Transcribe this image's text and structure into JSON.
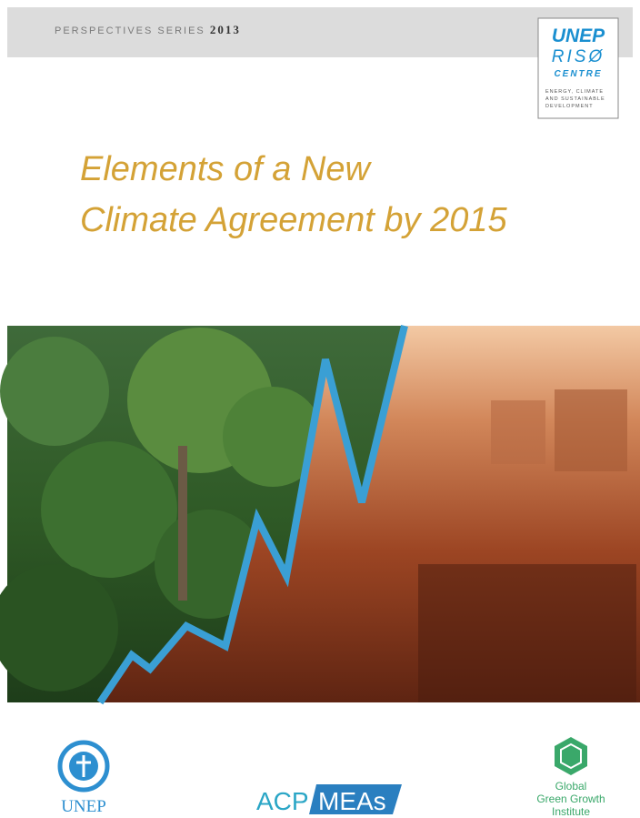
{
  "header": {
    "series": "PERSPECTIVES SERIES",
    "year": "2013"
  },
  "logo": {
    "name": "UNEP",
    "line2": "RISØ",
    "line3": "CENTRE",
    "tagline": [
      "ENERGY, CLIMATE",
      "AND SUSTAINABLE",
      "DEVELOPMENT"
    ]
  },
  "title": {
    "lines": [
      "Elements of a New",
      "Climate Agreement by 2015"
    ]
  },
  "partners": {
    "unep": "UNEP",
    "acp": {
      "left": "ACP",
      "right": "MEAs"
    },
    "gggi": [
      "Global",
      "Green Growth",
      "Institute"
    ]
  }
}
